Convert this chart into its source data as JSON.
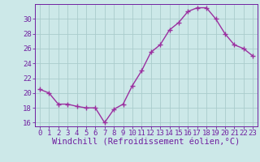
{
  "x": [
    0,
    1,
    2,
    3,
    4,
    5,
    6,
    7,
    8,
    9,
    10,
    11,
    12,
    13,
    14,
    15,
    16,
    17,
    18,
    19,
    20,
    21,
    22,
    23
  ],
  "y": [
    20.5,
    20.0,
    18.5,
    18.5,
    18.2,
    18.0,
    18.0,
    16.0,
    17.8,
    18.5,
    21.0,
    23.0,
    25.5,
    26.5,
    28.5,
    29.5,
    31.0,
    31.5,
    31.5,
    30.0,
    28.0,
    26.5,
    26.0,
    25.0
  ],
  "line_color": "#9b30a0",
  "marker": "+",
  "marker_size": 4,
  "bg_color": "#cce8e8",
  "grid_color": "#aacccc",
  "ylim": [
    15.5,
    32.0
  ],
  "yticks": [
    16,
    18,
    20,
    22,
    24,
    26,
    28,
    30
  ],
  "xlim": [
    -0.5,
    23.5
  ],
  "xticks": [
    0,
    1,
    2,
    3,
    4,
    5,
    6,
    7,
    8,
    9,
    10,
    11,
    12,
    13,
    14,
    15,
    16,
    17,
    18,
    19,
    20,
    21,
    22,
    23
  ],
  "xtick_labels": [
    "0",
    "1",
    "2",
    "3",
    "4",
    "5",
    "6",
    "7",
    "8",
    "9",
    "10",
    "11",
    "12",
    "13",
    "14",
    "15",
    "16",
    "17",
    "18",
    "19",
    "20",
    "21",
    "22",
    "23"
  ],
  "tick_color": "#7020a0",
  "font_color": "#7020a0",
  "font_family": "monospace",
  "font_size": 6.5,
  "xlabel": "Windchill (Refroidissement éolien,°C)",
  "xlabel_fontsize": 7.5,
  "linewidth": 1.0,
  "markeredgewidth": 1.0
}
